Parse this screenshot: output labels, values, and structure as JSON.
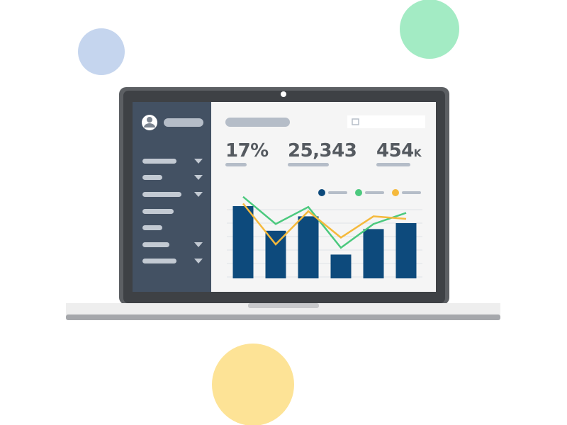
{
  "kpis": [
    {
      "value": "17%"
    },
    {
      "value": "25,343"
    },
    {
      "value": "454",
      "unit": "K"
    }
  ],
  "chart_data": {
    "type": "bar-line",
    "ylim": [
      0,
      100
    ],
    "grid": true,
    "series": [
      {
        "type": "bar",
        "color": "#0d4a7c",
        "values": [
          85,
          56,
          73,
          28,
          58,
          65
        ]
      },
      {
        "type": "line",
        "color": "#4cc97e",
        "values": [
          96,
          64,
          84,
          36,
          64,
          77
        ]
      },
      {
        "type": "line",
        "color": "#f5b93c",
        "values": [
          88,
          40,
          79,
          48,
          73,
          70
        ]
      }
    ]
  }
}
